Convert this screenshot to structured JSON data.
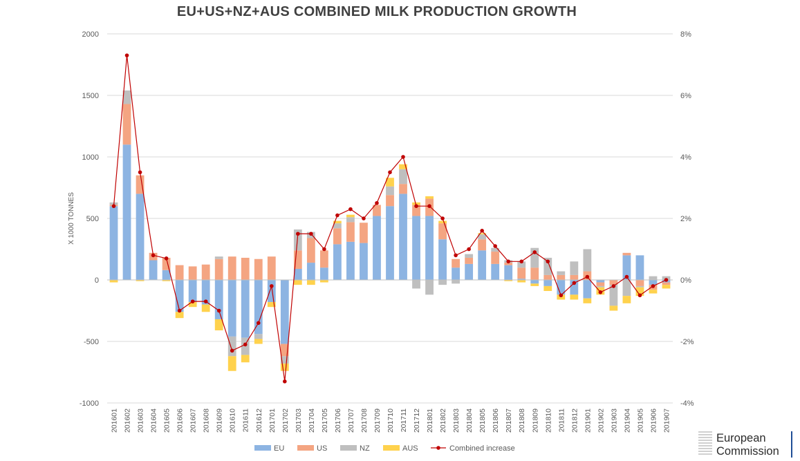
{
  "chart_data": {
    "type": "bar",
    "stacked": true,
    "title": "EU+US+NZ+AUS COMBINED MILK PRODUCTION GROWTH",
    "ylabel": "X 1000 TONNES",
    "ylim": [
      -1000,
      2000
    ],
    "yticks": [
      "-1000",
      "-500",
      "0",
      "500",
      "1000",
      "1500",
      "2000"
    ],
    "y2lim": [
      -4,
      8
    ],
    "y2ticks": [
      "-4%",
      "-2%",
      "0%",
      "2%",
      "4%",
      "6%",
      "8%"
    ],
    "grid": true,
    "legend_position": "bottom",
    "categories": [
      "201601",
      "201602",
      "201603",
      "201604",
      "201605",
      "201606",
      "201607",
      "201608",
      "201609",
      "201610",
      "201611",
      "201612",
      "201701",
      "201702",
      "201703",
      "201704",
      "201705",
      "201706",
      "201707",
      "201708",
      "201709",
      "201710",
      "201711",
      "201712",
      "201801",
      "201802",
      "201803",
      "201804",
      "201805",
      "201806",
      "201807",
      "201808",
      "201809",
      "201810",
      "201811",
      "201812",
      "201901",
      "201902",
      "201903",
      "201904",
      "201905",
      "201906",
      "201907"
    ],
    "series": [
      {
        "name": "EU",
        "color": "#8db4e2",
        "values": [
          600,
          1100,
          700,
          160,
          80,
          -260,
          -180,
          -200,
          -320,
          -460,
          -470,
          -440,
          -180,
          -520,
          90,
          140,
          100,
          290,
          310,
          300,
          520,
          600,
          700,
          520,
          520,
          330,
          100,
          130,
          240,
          130,
          120,
          10,
          -30,
          -50,
          -120,
          -120,
          -150,
          -20,
          0,
          200,
          200,
          -40,
          -20
        ]
      },
      {
        "name": "US",
        "color": "#f4a582",
        "values": [
          10,
          330,
          150,
          60,
          100,
          120,
          110,
          125,
          170,
          190,
          180,
          170,
          190,
          -100,
          150,
          200,
          140,
          130,
          160,
          165,
          90,
          90,
          80,
          90,
          140,
          130,
          70,
          50,
          90,
          100,
          20,
          90,
          100,
          40,
          40,
          40,
          70,
          -30,
          -40,
          20,
          -50,
          -40,
          -20
        ]
      },
      {
        "name": "NZ",
        "color": "#bfbfbf",
        "values": [
          20,
          110,
          0,
          0,
          0,
          0,
          0,
          0,
          20,
          -160,
          -140,
          -40,
          0,
          -60,
          170,
          50,
          0,
          40,
          40,
          0,
          0,
          70,
          120,
          -70,
          -120,
          -40,
          -30,
          30,
          40,
          30,
          20,
          50,
          160,
          140,
          30,
          110,
          180,
          -10,
          -170,
          -130,
          -10,
          30,
          30
        ]
      },
      {
        "name": "AUS",
        "color": "#ffd24d",
        "values": [
          -20,
          0,
          -10,
          0,
          -10,
          -50,
          -40,
          -60,
          -90,
          -120,
          -60,
          -40,
          -40,
          -60,
          -40,
          -40,
          -20,
          20,
          20,
          0,
          0,
          70,
          40,
          20,
          20,
          20,
          0,
          0,
          10,
          0,
          -10,
          -20,
          -20,
          -40,
          -40,
          -40,
          -40,
          -60,
          -40,
          -60,
          -70,
          -30,
          -30
        ]
      },
      {
        "name": "Combined increase",
        "color": "#c00000",
        "type": "line",
        "axis": "right",
        "values": [
          2.4,
          7.3,
          3.5,
          0.8,
          0.7,
          -1.0,
          -0.7,
          -0.7,
          -1.0,
          -2.3,
          -2.1,
          -1.4,
          -0.2,
          -3.3,
          1.5,
          1.5,
          1.0,
          2.1,
          2.3,
          2.0,
          2.5,
          3.5,
          4.0,
          2.4,
          2.4,
          2.0,
          0.8,
          1.0,
          1.6,
          1.1,
          0.6,
          0.6,
          0.9,
          0.6,
          -0.5,
          -0.1,
          0.1,
          -0.4,
          -0.2,
          0.1,
          -0.5,
          -0.2,
          0.0
        ]
      }
    ]
  },
  "logo": {
    "line1": "European",
    "line2": "Commission"
  }
}
